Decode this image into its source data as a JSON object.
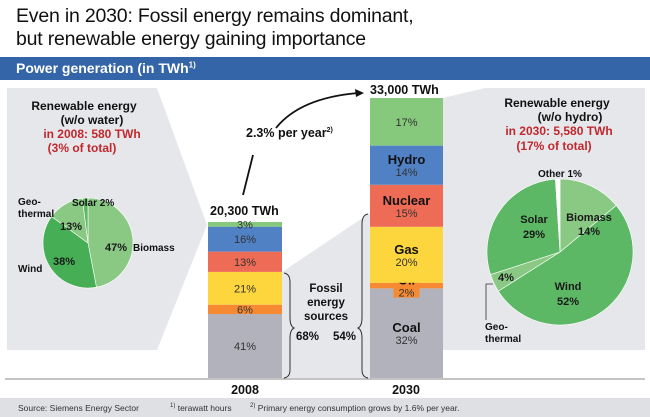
{
  "title": {
    "line1": "Even in 2030: Fossil energy remains dominant,",
    "line2": "but renewable energy gaining importance"
  },
  "band": {
    "label": "Power generation (in TWh",
    "sup": "1)"
  },
  "colors": {
    "renewables": "#86c97d",
    "hydro": "#4f81c4",
    "nuclear": "#ee6b56",
    "gas": "#fcd63c",
    "oil": "#f68a33",
    "coal": "#b1b2bb",
    "panel": "#e6e7eb",
    "accent_red": "#c0282d",
    "band": "#3465a8",
    "pie_light": "#89c983",
    "pie_dark": "#46ae55",
    "pie_mid": "#5cb864"
  },
  "chart_data": [
    {
      "type": "bar",
      "stacked": true,
      "title": "Power generation (in TWh)",
      "categories": [
        "2008",
        "2030"
      ],
      "totals": [
        "20,300 TWh",
        "33,000 TWh"
      ],
      "series": [
        {
          "name": "Coal",
          "values": [
            41,
            32
          ]
        },
        {
          "name": "Oil",
          "values": [
            6,
            2
          ]
        },
        {
          "name": "Gas",
          "values": [
            21,
            20
          ]
        },
        {
          "name": "Nuclear",
          "values": [
            13,
            15
          ]
        },
        {
          "name": "Hydro",
          "values": [
            16,
            14
          ]
        },
        {
          "name": "Renewables",
          "values": [
            3,
            17
          ]
        }
      ],
      "annotations": {
        "growth": "2.3% per year",
        "growth_sup": "2)",
        "fossil_label": [
          "Fossil",
          "energy",
          "sources"
        ],
        "fossil_2008": "68%",
        "fossil_2030": "54%"
      }
    },
    {
      "type": "pie",
      "title": [
        "Renewable energy",
        "(w/o water)"
      ],
      "subtitle": [
        "in 2008: 580 TWh",
        "(3% of total)"
      ],
      "slices": [
        {
          "name": "Biomass",
          "value": 47,
          "label": "47%"
        },
        {
          "name": "Wind",
          "value": 38,
          "label": "38%"
        },
        {
          "name": "Geothermal",
          "value": 13,
          "label": "13%"
        },
        {
          "name": "Solar",
          "value": 2,
          "label": "2%"
        }
      ],
      "labels": {
        "geo1": "Geo-",
        "geo2": "thermal",
        "solar": "Solar 2%",
        "wind": "Wind",
        "biomass": "Biomass"
      }
    },
    {
      "type": "pie",
      "title": [
        "Renewable energy",
        "(w/o hydro)"
      ],
      "subtitle": [
        "in 2030: 5,580 TWh",
        "(17% of total)"
      ],
      "slices": [
        {
          "name": "Biomass",
          "value": 14,
          "label": "14%"
        },
        {
          "name": "Wind",
          "value": 52,
          "label": "52%"
        },
        {
          "name": "Geothermal",
          "value": 4,
          "label": "4%"
        },
        {
          "name": "Solar",
          "value": 29,
          "label": "29%"
        },
        {
          "name": "Other",
          "value": 1,
          "label": "1%"
        }
      ],
      "labels": {
        "other": "Other 1%",
        "solar": "Solar",
        "biomass": "Biomass",
        "wind": "Wind",
        "geo1": "Geo-",
        "geo2": "thermal"
      }
    }
  ],
  "bar_labels": {
    "2008": [
      "41%",
      "6%",
      "21%",
      "13%",
      "16%",
      "3%"
    ],
    "2030": [
      "32%",
      "2%",
      "20%",
      "15%",
      "14%",
      "17%"
    ],
    "names_2030": [
      "Coal",
      "Oil",
      "Gas",
      "Nuclear",
      "Hydro",
      ""
    ]
  },
  "footer": {
    "source": "Source: Siemens Energy Sector",
    "note1_sup": "1)",
    "note1": " terawatt hours",
    "note2_sup": "2)",
    "note2": " Primary energy consumption grows by 1.6% per year."
  }
}
